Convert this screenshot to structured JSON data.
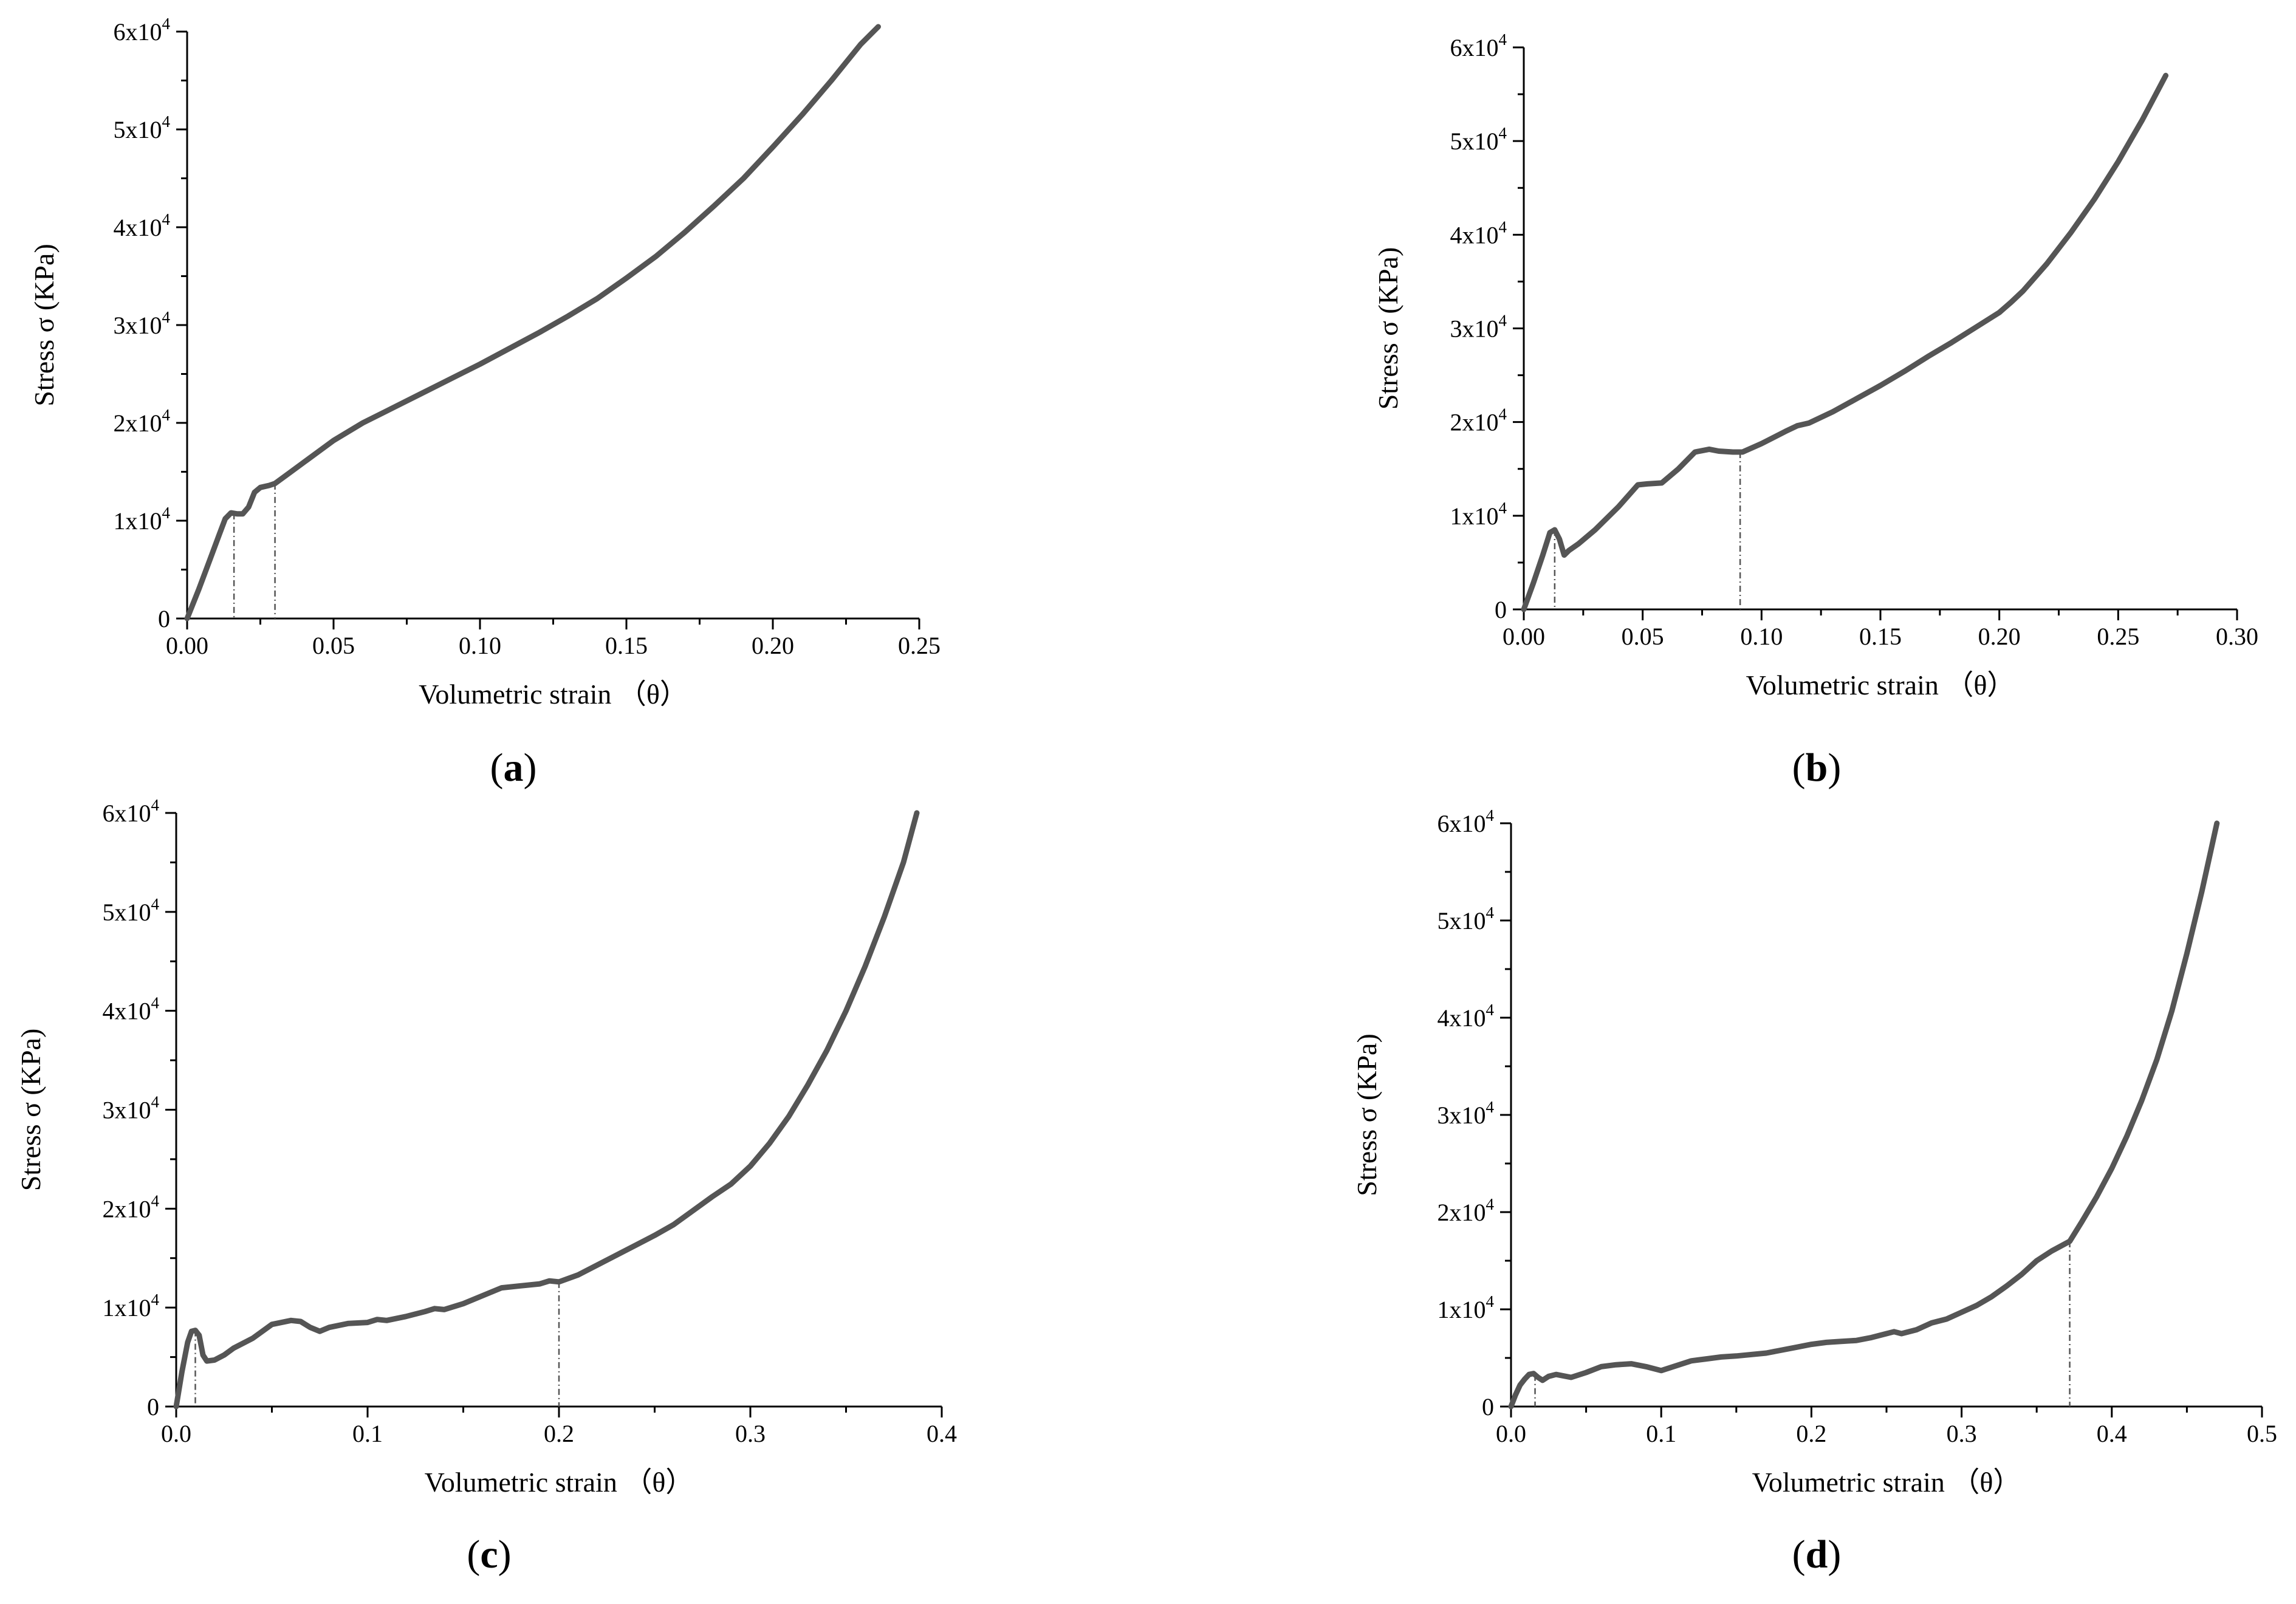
{
  "chart_data": [
    {
      "id": "a",
      "type": "line",
      "panel_label": "a",
      "xlabel": "Volumetric strain （θ）",
      "ylabel": "Stress σ (KPa)",
      "xlim": [
        0,
        0.25
      ],
      "ylim": [
        0,
        60000
      ],
      "x_ticks": [
        "0.00",
        "0.05",
        "0.10",
        "0.15",
        "0.20",
        "0.25"
      ],
      "y_ticks": [
        {
          "mant": "0",
          "exp": ""
        },
        {
          "mant": "1x10",
          "exp": "4"
        },
        {
          "mant": "2x10",
          "exp": "4"
        },
        {
          "mant": "3x10",
          "exp": "4"
        },
        {
          "mant": "4x10",
          "exp": "4"
        },
        {
          "mant": "5x10",
          "exp": "4"
        },
        {
          "mant": "6x10",
          "exp": "4"
        }
      ],
      "series": [
        {
          "name": "stress",
          "x": [
            0,
            0.004,
            0.008,
            0.011,
            0.013,
            0.015,
            0.017,
            0.019,
            0.021,
            0.023,
            0.025,
            0.028,
            0.03,
            0.035,
            0.04,
            0.05,
            0.06,
            0.07,
            0.08,
            0.09,
            0.1,
            0.11,
            0.12,
            0.13,
            0.14,
            0.15,
            0.16,
            0.17,
            0.18,
            0.19,
            0.2,
            0.21,
            0.22,
            0.23,
            0.236
          ],
          "y": [
            0,
            3000,
            6200,
            8600,
            10200,
            10800,
            10700,
            10700,
            11400,
            12900,
            13400,
            13600,
            13800,
            14900,
            16000,
            18200,
            20000,
            21500,
            23000,
            24500,
            26000,
            27600,
            29200,
            30900,
            32700,
            34800,
            37000,
            39500,
            42200,
            45000,
            48200,
            51500,
            55000,
            58700,
            60500
          ]
        }
      ],
      "markers": [
        0.016,
        0.03
      ]
    },
    {
      "id": "b",
      "type": "line",
      "panel_label": "b",
      "xlabel": "Volumetric strain （θ）",
      "ylabel": "Stress σ (KPa)",
      "xlim": [
        0,
        0.3
      ],
      "ylim": [
        0,
        60000
      ],
      "x_ticks": [
        "0.00",
        "0.05",
        "0.10",
        "0.15",
        "0.20",
        "0.25",
        "0.30"
      ],
      "y_ticks": [
        {
          "mant": "0",
          "exp": ""
        },
        {
          "mant": "1x10",
          "exp": "4"
        },
        {
          "mant": "2x10",
          "exp": "4"
        },
        {
          "mant": "3x10",
          "exp": "4"
        },
        {
          "mant": "4x10",
          "exp": "4"
        },
        {
          "mant": "5x10",
          "exp": "4"
        },
        {
          "mant": "6x10",
          "exp": "4"
        }
      ],
      "series": [
        {
          "name": "stress",
          "x": [
            0,
            0.004,
            0.008,
            0.011,
            0.013,
            0.015,
            0.017,
            0.019,
            0.023,
            0.03,
            0.04,
            0.048,
            0.052,
            0.058,
            0.065,
            0.072,
            0.078,
            0.082,
            0.088,
            0.092,
            0.1,
            0.11,
            0.115,
            0.12,
            0.13,
            0.14,
            0.15,
            0.16,
            0.17,
            0.18,
            0.19,
            0.2,
            0.205,
            0.21,
            0.22,
            0.23,
            0.24,
            0.25,
            0.26,
            0.27
          ],
          "y": [
            0,
            2800,
            5800,
            8200,
            8500,
            7500,
            5800,
            6300,
            7000,
            8500,
            11000,
            13300,
            13400,
            13500,
            15000,
            16800,
            17100,
            16900,
            16800,
            16800,
            17700,
            19000,
            19600,
            19900,
            21100,
            22500,
            23900,
            25400,
            27000,
            28500,
            30100,
            31700,
            32800,
            34000,
            36900,
            40200,
            43800,
            47800,
            52200,
            57000
          ]
        }
      ],
      "markers": [
        0.013,
        0.091
      ]
    },
    {
      "id": "c",
      "type": "line",
      "panel_label": "c",
      "xlabel": "Volumetric strain （θ）",
      "ylabel": "Stress σ (KPa)",
      "xlim": [
        0,
        0.4
      ],
      "ylim": [
        0,
        60000
      ],
      "x_ticks": [
        "0.0",
        "0.1",
        "0.2",
        "0.3",
        "0.4"
      ],
      "y_ticks": [
        {
          "mant": "0",
          "exp": ""
        },
        {
          "mant": "1x10",
          "exp": "4"
        },
        {
          "mant": "2x10",
          "exp": "4"
        },
        {
          "mant": "3x10",
          "exp": "4"
        },
        {
          "mant": "4x10",
          "exp": "4"
        },
        {
          "mant": "5x10",
          "exp": "4"
        },
        {
          "mant": "6x10",
          "exp": "4"
        }
      ],
      "series": [
        {
          "name": "stress",
          "x": [
            0,
            0.003,
            0.006,
            0.008,
            0.01,
            0.012,
            0.014,
            0.016,
            0.02,
            0.025,
            0.03,
            0.04,
            0.05,
            0.06,
            0.065,
            0.07,
            0.075,
            0.08,
            0.09,
            0.1,
            0.105,
            0.11,
            0.12,
            0.13,
            0.135,
            0.14,
            0.15,
            0.16,
            0.17,
            0.18,
            0.19,
            0.195,
            0.2,
            0.21,
            0.22,
            0.23,
            0.24,
            0.25,
            0.26,
            0.27,
            0.28,
            0.29,
            0.3,
            0.31,
            0.32,
            0.33,
            0.34,
            0.35,
            0.36,
            0.37,
            0.38,
            0.387
          ],
          "y": [
            0,
            3500,
            6500,
            7600,
            7700,
            7200,
            5200,
            4600,
            4700,
            5200,
            5900,
            6900,
            8300,
            8700,
            8600,
            8000,
            7600,
            8000,
            8400,
            8500,
            8800,
            8700,
            9100,
            9600,
            9900,
            9800,
            10400,
            11200,
            12000,
            12200,
            12400,
            12700,
            12600,
            13300,
            14300,
            15300,
            16300,
            17300,
            18400,
            19800,
            21200,
            22500,
            24300,
            26600,
            29300,
            32500,
            36000,
            40000,
            44500,
            49500,
            55000,
            60000
          ]
        }
      ],
      "markers": [
        0.01,
        0.2
      ]
    },
    {
      "id": "d",
      "type": "line",
      "panel_label": "d",
      "xlabel": "Volumetric strain （θ）",
      "ylabel": "Stress σ (KPa)",
      "xlim": [
        0,
        0.5
      ],
      "ylim": [
        0,
        60000
      ],
      "x_ticks": [
        "0.0",
        "0.1",
        "0.2",
        "0.3",
        "0.4",
        "0.5"
      ],
      "y_ticks": [
        {
          "mant": "0",
          "exp": ""
        },
        {
          "mant": "1x10",
          "exp": "4"
        },
        {
          "mant": "2x10",
          "exp": "4"
        },
        {
          "mant": "3x10",
          "exp": "4"
        },
        {
          "mant": "4x10",
          "exp": "4"
        },
        {
          "mant": "5x10",
          "exp": "4"
        },
        {
          "mant": "6x10",
          "exp": "4"
        }
      ],
      "series": [
        {
          "name": "stress",
          "x": [
            0,
            0.003,
            0.006,
            0.009,
            0.012,
            0.015,
            0.018,
            0.021,
            0.025,
            0.03,
            0.04,
            0.05,
            0.06,
            0.07,
            0.08,
            0.09,
            0.1,
            0.11,
            0.12,
            0.13,
            0.14,
            0.15,
            0.17,
            0.19,
            0.2,
            0.21,
            0.22,
            0.23,
            0.24,
            0.25,
            0.255,
            0.26,
            0.27,
            0.28,
            0.29,
            0.3,
            0.31,
            0.32,
            0.33,
            0.34,
            0.35,
            0.36,
            0.372,
            0.38,
            0.39,
            0.4,
            0.41,
            0.42,
            0.43,
            0.44,
            0.45,
            0.46,
            0.47
          ],
          "y": [
            0,
            1200,
            2200,
            2800,
            3300,
            3400,
            3000,
            2700,
            3100,
            3300,
            3000,
            3500,
            4100,
            4300,
            4400,
            4100,
            3700,
            4200,
            4700,
            4900,
            5100,
            5200,
            5500,
            6100,
            6400,
            6600,
            6700,
            6800,
            7100,
            7500,
            7700,
            7500,
            7900,
            8600,
            9000,
            9700,
            10400,
            11300,
            12400,
            13600,
            15000,
            16000,
            17000,
            19000,
            21600,
            24500,
            27800,
            31500,
            35700,
            40700,
            46600,
            53000,
            60000
          ]
        }
      ],
      "markers": [
        0.016,
        0.372
      ]
    }
  ]
}
